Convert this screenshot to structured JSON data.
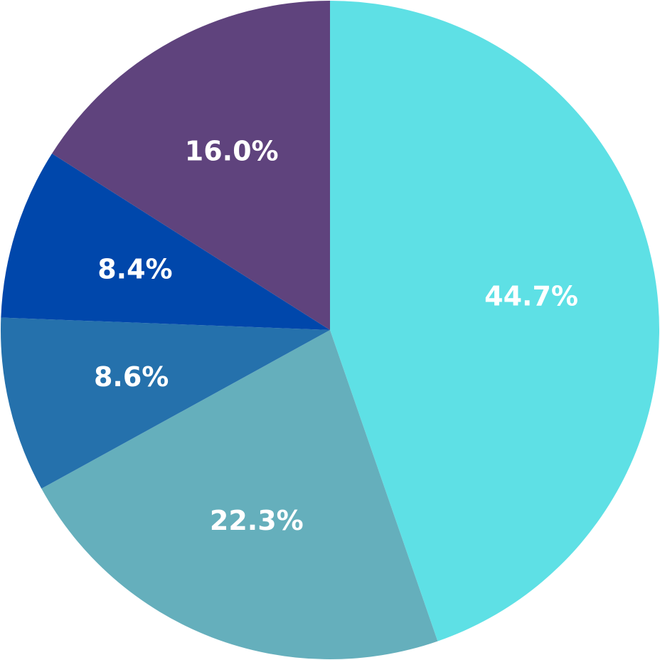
{
  "chart_data": {
    "type": "pie",
    "start": "top",
    "direction": "clockwise",
    "slices": [
      {
        "label": "44.7%",
        "value": 44.7,
        "color": "#5EE0E5"
      },
      {
        "label": "22.3%",
        "value": 22.3,
        "color": "#65AFBC"
      },
      {
        "label": "8.6%",
        "value": 8.6,
        "color": "#2571AC"
      },
      {
        "label": "8.4%",
        "value": 8.4,
        "color": "#0047AB"
      },
      {
        "label": "16.0%",
        "value": 16.0,
        "color": "#5F437D"
      }
    ]
  }
}
